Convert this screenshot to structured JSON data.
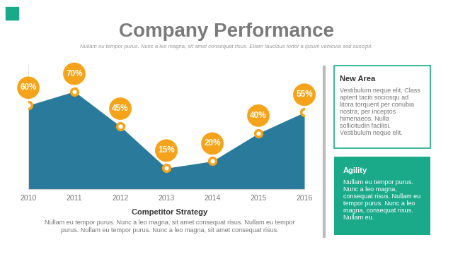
{
  "chart_data": {
    "type": "area",
    "title": "Company Performance",
    "subtitle": "Nullam eu tempor purus. Nunc a leo magna, sit amet consequat risus. Etiam faucibus tortor a ipsum vehicula sed suscipit.",
    "x": [
      2010,
      2011,
      2012,
      2013,
      2014,
      2015,
      2016
    ],
    "values": [
      60,
      70,
      45,
      15,
      20,
      40,
      55
    ],
    "value_labels": [
      "60%",
      "70%",
      "45%",
      "15%",
      "20%",
      "40%",
      "55%"
    ],
    "data_labels": true,
    "color": "#2a7b9b",
    "marker": "circle",
    "xlim": [
      2010,
      2016
    ],
    "xticks": [
      2010,
      2011,
      2012,
      2013,
      2014,
      2015,
      2016
    ],
    "ylim": [
      0,
      90
    ],
    "yticks": [],
    "tick_labels": "x",
    "grid": false
  },
  "caption": {
    "title": "Competitor Strategy",
    "text": "Nullam eu tempor purus. Nunc a leo magna, sit amet consequat risus. Nullam eu tempor purus. Nullam eu tempor purus. Nunc a leo magna, sit amet consequat risus."
  },
  "panels": [
    {
      "title": "New Area",
      "text": "Vestibulum neque elit, Class aptent taciti sociosqu ad litora torquent per conubia nostra, per inceptos himenaeos. Nulla sollicitudin facilisi. Vestibulum neque elit."
    },
    {
      "title": "Agility",
      "text": "Nullam eu tempor purus. Nunc a leo magna, consequat risus. Nullam eu tempor purus. Nunc a leo magna, consequat risus. Nullam eu."
    }
  ]
}
